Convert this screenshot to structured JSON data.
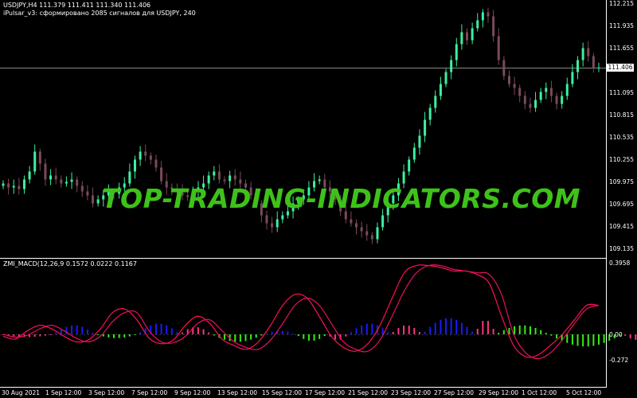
{
  "main_chart": {
    "symbol_line": "USDJPY,H4  111.379 111.411 111.340 111.406",
    "indicator_line": "iPulsar_v3: сформировано 2085 сигналов для USDJPY, 240",
    "current_price": "111.406",
    "price_ticks": [
      "112.215",
      "111.935",
      "111.655",
      "111.406",
      "111.095",
      "110.815",
      "110.535",
      "110.255",
      "109.975",
      "109.695",
      "109.415",
      "109.135"
    ]
  },
  "sub_chart": {
    "title": "ZMI_MACD(12,26,9 0.1572 0.0222 0.1167",
    "ticks": [
      "0.3958",
      "0.00",
      "-0.272"
    ]
  },
  "time_ticks": [
    "30 Aug 2021",
    "1 Sep 12:00",
    "3 Sep 12:00",
    "7 Sep 12:00",
    "9 Sep 12:00",
    "13 Sep 12:00",
    "15 Sep 12:00",
    "17 Sep 12:00",
    "21 Sep 12:00",
    "23 Sep 12:00",
    "27 Sep 12:00",
    "29 Sep 12:00",
    "1 Oct 12:00",
    "5 Oct 12:00"
  ],
  "watermark": "TOP-TRADING-INDICATORS.COM",
  "colors": {
    "bull": "#3cf0a0",
    "bear": "#7a4a5a",
    "grid_line": "#ffffff",
    "hist_green": "#33ee11",
    "hist_blue": "#1a1aff",
    "hist_pink": "#ff3380",
    "macd_line": "#ff1150",
    "signal_line": "#e61060",
    "watermark": "#3ec21a"
  },
  "chart_data": {
    "type": "candlestick",
    "close_series": [
      109.95,
      109.9,
      109.92,
      109.88,
      110.0,
      110.1,
      110.35,
      110.2,
      110.0,
      110.05,
      110.0,
      109.95,
      109.97,
      110.0,
      109.92,
      109.85,
      109.8,
      109.7,
      109.75,
      109.8,
      109.85,
      109.82,
      109.9,
      109.95,
      110.1,
      110.25,
      110.35,
      110.3,
      110.25,
      110.15,
      109.98,
      109.9,
      109.88,
      109.85,
      109.8,
      109.78,
      109.85,
      109.9,
      109.95,
      110.05,
      110.1,
      110.0,
      109.98,
      110.05,
      110.0,
      109.95,
      109.9,
      109.8,
      109.7,
      109.55,
      109.45,
      109.4,
      109.5,
      109.55,
      109.6,
      109.7,
      109.75,
      109.8,
      109.9,
      109.98,
      110.0,
      109.9,
      109.85,
      109.75,
      109.6,
      109.5,
      109.45,
      109.4,
      109.35,
      109.3,
      109.25,
      109.4,
      109.55,
      109.7,
      109.8,
      109.95,
      110.1,
      110.25,
      110.4,
      110.55,
      110.75,
      110.9,
      111.05,
      111.2,
      111.35,
      111.5,
      111.7,
      111.85,
      111.75,
      111.9,
      112.0,
      112.1,
      112.05,
      111.8,
      111.5,
      111.3,
      111.2,
      111.15,
      111.05,
      110.95,
      110.9,
      111.0,
      111.1,
      111.15,
      111.05,
      110.95,
      111.05,
      111.2,
      111.35,
      111.5,
      111.65,
      111.55,
      111.4,
      111.406
    ],
    "histogram_zones": [
      {
        "color": "pink",
        "from": 0,
        "to": 10,
        "amp": -0.03
      },
      {
        "color": "blue",
        "from": 10,
        "to": 18,
        "amp": 0.05
      },
      {
        "color": "green",
        "from": 18,
        "to": 26,
        "amp": -0.04
      },
      {
        "color": "blue",
        "from": 26,
        "to": 34,
        "amp": 0.06
      },
      {
        "color": "pink",
        "from": 34,
        "to": 40,
        "amp": 0.04
      },
      {
        "color": "green",
        "from": 40,
        "to": 50,
        "amp": -0.08
      },
      {
        "color": "blue",
        "from": 50,
        "to": 56,
        "amp": 0.02
      },
      {
        "color": "green",
        "from": 56,
        "to": 62,
        "amp": -0.07
      },
      {
        "color": "pink",
        "from": 62,
        "to": 66,
        "amp": -0.06
      },
      {
        "color": "blue",
        "from": 66,
        "to": 74,
        "amp": 0.06
      },
      {
        "color": "pink",
        "from": 74,
        "to": 80,
        "amp": 0.05
      },
      {
        "color": "blue",
        "from": 80,
        "to": 90,
        "amp": 0.09
      },
      {
        "color": "pink",
        "from": 90,
        "to": 94,
        "amp": 0.08
      },
      {
        "color": "green",
        "from": 94,
        "to": 104,
        "amp": 0.05
      },
      {
        "color": "green",
        "from": 104,
        "to": 118,
        "amp": -0.13
      },
      {
        "color": "pink",
        "from": 118,
        "to": 124,
        "amp": -0.06
      },
      {
        "color": "blue",
        "from": 124,
        "to": 132,
        "amp": 0.07
      },
      {
        "color": "pink",
        "from": 132,
        "to": 136,
        "amp": 0.05
      }
    ],
    "macd_line": [
      -0.02,
      -0.05,
      0.02,
      0.05,
      0.03,
      -0.02,
      -0.08,
      -0.06,
      0.03,
      0.12,
      0.14,
      0.08,
      -0.04,
      -0.1,
      -0.06,
      0.05,
      0.1,
      0.06,
      -0.05,
      -0.12,
      -0.16,
      -0.08,
      0.05,
      0.16,
      0.22,
      0.2,
      0.1,
      -0.02,
      -0.14,
      -0.18,
      -0.1,
      0.05,
      0.2,
      0.34,
      0.38,
      0.38,
      0.37,
      0.35,
      0.35,
      0.33,
      0.28,
      0.1,
      -0.12,
      -0.24,
      -0.22,
      -0.12,
      0.0,
      0.08,
      0.16,
      0.16
    ],
    "signal_line": [
      0.0,
      -0.03,
      -0.01,
      0.03,
      0.05,
      0.02,
      -0.04,
      -0.08,
      -0.02,
      0.07,
      0.12,
      0.12,
      0.02,
      -0.08,
      -0.09,
      -0.02,
      0.06,
      0.08,
      0.02,
      -0.08,
      -0.14,
      -0.16,
      -0.06,
      0.06,
      0.16,
      0.2,
      0.16,
      0.06,
      -0.08,
      -0.16,
      -0.18,
      -0.06,
      0.1,
      0.24,
      0.34,
      0.38,
      0.38,
      0.36,
      0.35,
      0.34,
      0.33,
      0.22,
      0.0,
      -0.2,
      -0.26,
      -0.2,
      -0.06,
      0.06,
      0.14,
      0.16
    ]
  }
}
